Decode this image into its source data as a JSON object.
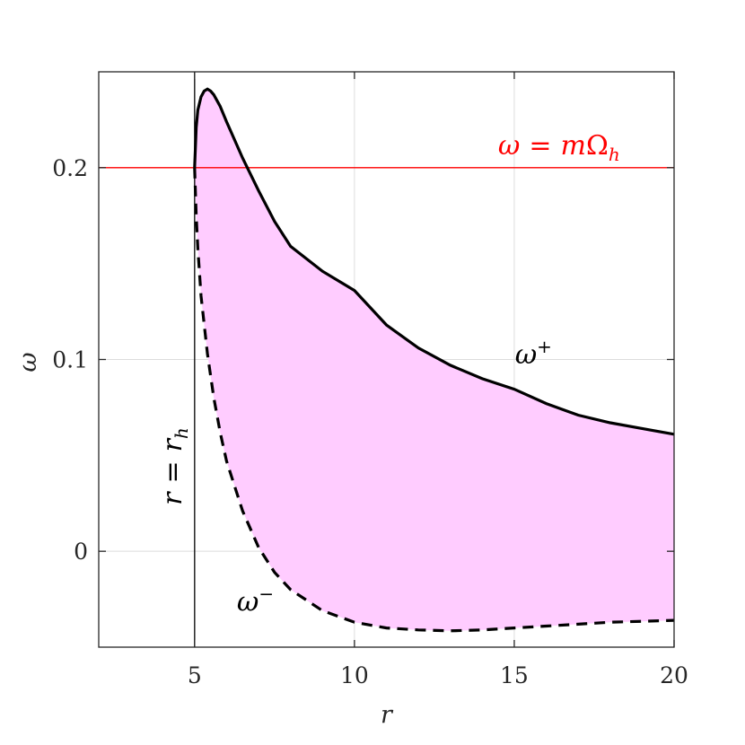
{
  "chart_data": {
    "type": "area",
    "xlabel": "r",
    "ylabel": "ω",
    "xlim": [
      2,
      20
    ],
    "ylim": [
      -0.05,
      0.25
    ],
    "x_ticks": [
      5,
      10,
      15,
      20
    ],
    "y_ticks": [
      0,
      0.1,
      0.2
    ],
    "x_tick_labels": [
      "5",
      "10",
      "15",
      "20"
    ],
    "y_tick_labels": [
      "0",
      "0.1",
      "0.2"
    ],
    "grid": true,
    "fill_color": "#FFCCFF",
    "series": [
      {
        "name": "ω+",
        "style": "solid",
        "color": "#000000",
        "x": [
          5.0,
          5.05,
          5.1,
          5.2,
          5.3,
          5.4,
          5.5,
          5.6,
          5.8,
          6.0,
          6.5,
          7.0,
          7.5,
          8.0,
          9.0,
          10.0,
          11.0,
          12.0,
          13.0,
          14.0,
          15.0,
          16.0,
          17.0,
          18.0,
          19.0,
          20.0
        ],
        "y": [
          0.2,
          0.221,
          0.23,
          0.237,
          0.24,
          0.241,
          0.24,
          0.238,
          0.232,
          0.224,
          0.205,
          0.188,
          0.172,
          0.159,
          0.146,
          0.136,
          0.118,
          0.106,
          0.097,
          0.09,
          0.0845,
          0.077,
          0.071,
          0.067,
          0.064,
          0.061
        ]
      },
      {
        "name": "ω−",
        "style": "dashed",
        "color": "#000000",
        "x": [
          5.0,
          5.05,
          5.1,
          5.2,
          5.4,
          5.6,
          5.8,
          6.0,
          6.5,
          7.0,
          7.5,
          8.0,
          9.0,
          10.0,
          11.0,
          12.0,
          13.0,
          14.0,
          15.0,
          16.0,
          17.0,
          18.0,
          19.0,
          20.0
        ],
        "y": [
          0.2,
          0.175,
          0.158,
          0.133,
          0.103,
          0.08,
          0.062,
          0.047,
          0.021,
          0.002,
          -0.011,
          -0.02,
          -0.031,
          -0.037,
          -0.04,
          -0.041,
          -0.0415,
          -0.041,
          -0.04,
          -0.039,
          -0.038,
          -0.037,
          -0.0365,
          -0.036
        ]
      }
    ],
    "horizontal_line": {
      "y": 0.2,
      "label": "ω = mΩ_h",
      "color": "#FF0000"
    },
    "vertical_line": {
      "x": 5,
      "label": "r = r_h",
      "color": "#000000"
    },
    "annotations": [
      {
        "text": "ω+",
        "x": 15.6,
        "y": 0.098
      },
      {
        "text": "ω−",
        "x": 6.9,
        "y": -0.031
      },
      {
        "text": "ω = mΩ_h",
        "x": 16.4,
        "y": 0.207
      },
      {
        "text": "r = r_h",
        "x": 4.3,
        "y": 0.024
      }
    ]
  }
}
